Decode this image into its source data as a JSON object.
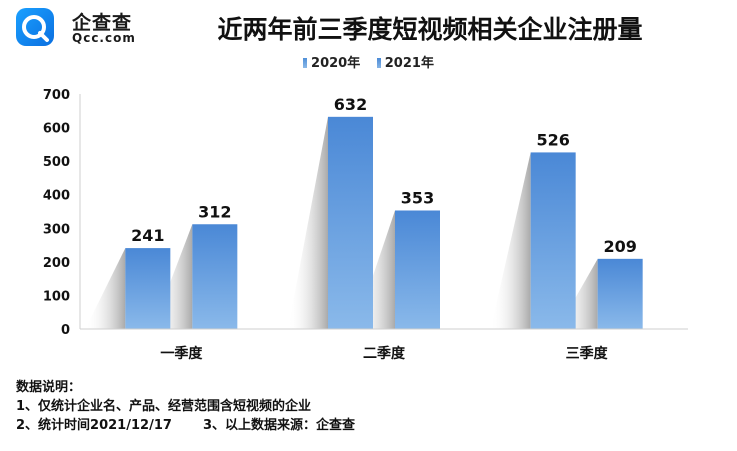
{
  "brand": {
    "name": "企查查",
    "domain": "Qcc.com"
  },
  "chart_data": {
    "type": "bar",
    "title": "近两年前三季度短视频相关企业注册量",
    "categories": [
      "一季度",
      "二季度",
      "三季度"
    ],
    "series": [
      {
        "name": "2020年",
        "values": [
          241,
          632,
          526
        ],
        "color": "#4f8fd8"
      },
      {
        "name": "2021年",
        "values": [
          312,
          353,
          209
        ],
        "color": "#4a8ad6"
      }
    ],
    "ylim": [
      0,
      700
    ],
    "yticks": [
      "0",
      "100",
      "200",
      "300",
      "400",
      "500",
      "600",
      "700"
    ],
    "xlabel": "",
    "ylabel": "",
    "legend_position": "top-center",
    "grid": false
  },
  "notes": {
    "heading": "数据说明：",
    "line1": "1、仅统计企业名、产品、经营范围含短视频的企业",
    "line2": "2、统计时间2021/12/17",
    "line3": "3、以上数据来源：企查查"
  }
}
